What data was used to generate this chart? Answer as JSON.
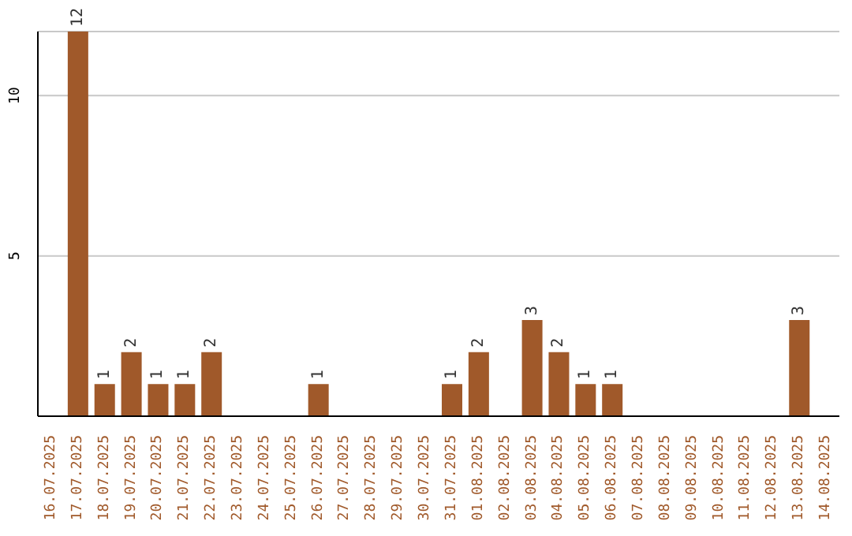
{
  "chart_data": {
    "type": "bar",
    "categories": [
      "16.07.2025",
      "17.07.2025",
      "18.07.2025",
      "19.07.2025",
      "20.07.2025",
      "21.07.2025",
      "22.07.2025",
      "23.07.2025",
      "24.07.2025",
      "25.07.2025",
      "26.07.2025",
      "27.07.2025",
      "28.07.2025",
      "29.07.2025",
      "30.07.2025",
      "31.07.2025",
      "01.08.2025",
      "02.08.2025",
      "03.08.2025",
      "04.08.2025",
      "05.08.2025",
      "06.08.2025",
      "07.08.2025",
      "08.08.2025",
      "09.08.2025",
      "10.08.2025",
      "11.08.2025",
      "12.08.2025",
      "13.08.2025",
      "14.08.2025"
    ],
    "values": [
      0,
      12,
      1,
      2,
      1,
      1,
      2,
      0,
      0,
      0,
      1,
      0,
      0,
      0,
      0,
      1,
      2,
      0,
      3,
      2,
      1,
      1,
      0,
      0,
      0,
      0,
      0,
      0,
      3,
      0
    ],
    "value_labels": [
      null,
      "12",
      "1",
      "2",
      "1",
      "1",
      "2",
      null,
      null,
      null,
      "1",
      null,
      null,
      null,
      null,
      "1",
      "2",
      null,
      "3",
      "2",
      "1",
      "1",
      null,
      null,
      null,
      null,
      null,
      null,
      "3",
      null
    ],
    "color": "#a0592a",
    "ylim": [
      0,
      12
    ],
    "yticks": [
      5,
      10
    ],
    "grid": "y"
  }
}
